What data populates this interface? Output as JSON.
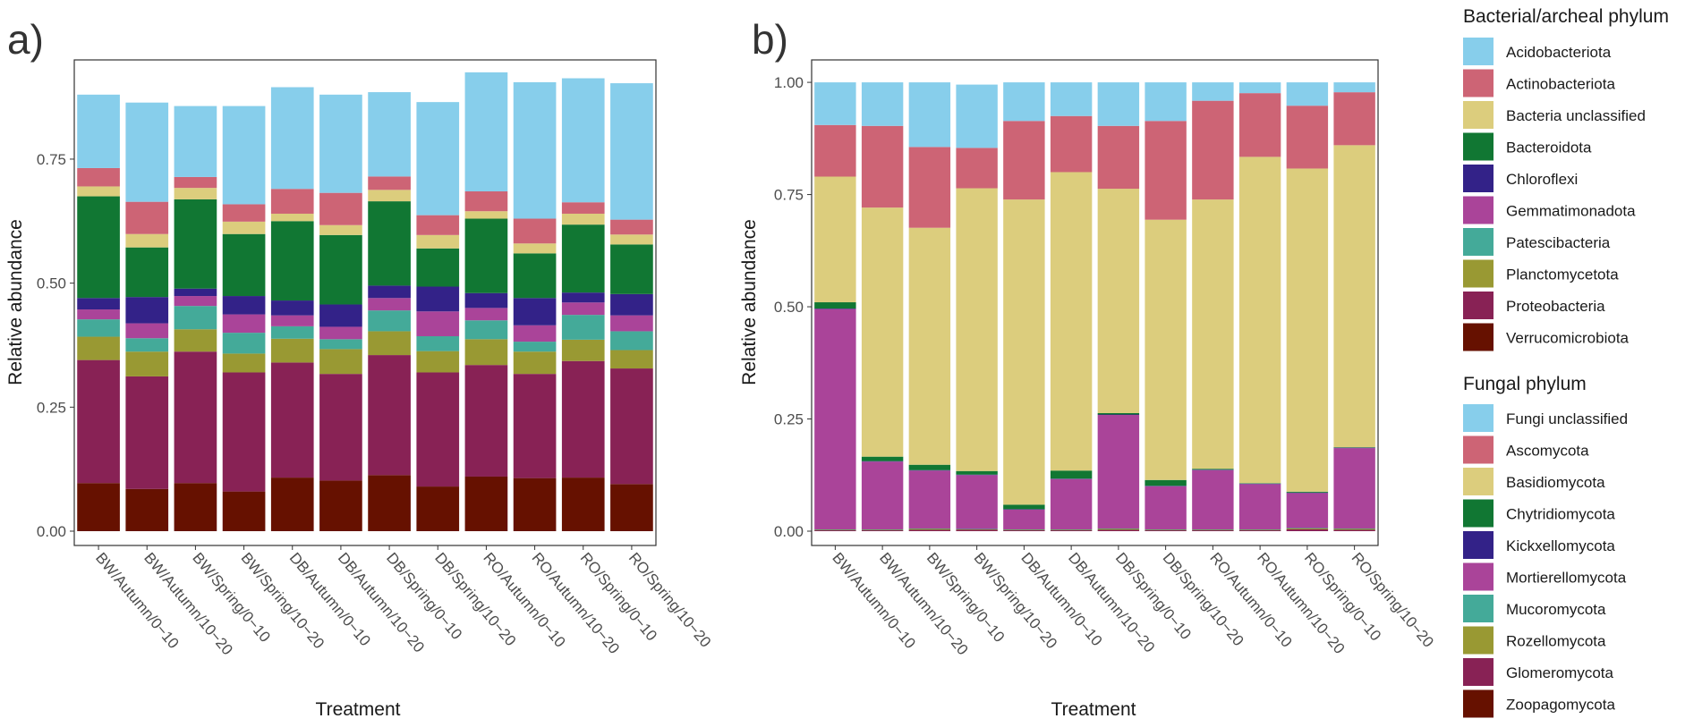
{
  "chart_data": [
    {
      "panel": "a)",
      "type": "bar",
      "stacked": true,
      "xlabel": "Treatment",
      "ylabel": "Relative abundance",
      "ylim": [
        0,
        0.95
      ],
      "yticks": [
        0.0,
        0.25,
        0.5,
        0.75
      ],
      "ytick_labels": [
        "0.00",
        "0.25",
        "0.50",
        "0.75"
      ],
      "categories": [
        "BW/Autumn/0−10",
        "BW/Autumn/10−20",
        "BW/Spring/0−10",
        "BW/Spring/10−20",
        "DB/Autumn/0−10",
        "DB/Autumn/10−20",
        "DB/Spring/0−10",
        "DB/Spring/10−20",
        "RO/Autumn/0−10",
        "RO/Autumn/10−20",
        "RO/Spring/0−10",
        "RO/Spring/10−20"
      ],
      "series": [
        {
          "name": "Verrucomicrobiota",
          "values": [
            0.097,
            0.085,
            0.097,
            0.08,
            0.108,
            0.102,
            0.113,
            0.09,
            0.11,
            0.107,
            0.108,
            0.095
          ]
        },
        {
          "name": "Proteobacteria",
          "values": [
            0.248,
            0.227,
            0.265,
            0.24,
            0.232,
            0.215,
            0.242,
            0.23,
            0.225,
            0.21,
            0.235,
            0.233
          ]
        },
        {
          "name": "Planctomycetota",
          "values": [
            0.047,
            0.05,
            0.045,
            0.038,
            0.048,
            0.05,
            0.048,
            0.043,
            0.052,
            0.045,
            0.043,
            0.037
          ]
        },
        {
          "name": "Patescibacteria",
          "values": [
            0.035,
            0.027,
            0.047,
            0.042,
            0.025,
            0.02,
            0.042,
            0.03,
            0.038,
            0.02,
            0.05,
            0.038
          ]
        },
        {
          "name": "Gemmatimonadota",
          "values": [
            0.02,
            0.03,
            0.02,
            0.037,
            0.022,
            0.025,
            0.025,
            0.05,
            0.025,
            0.033,
            0.025,
            0.032
          ]
        },
        {
          "name": "Chloroflexi",
          "values": [
            0.023,
            0.053,
            0.015,
            0.037,
            0.03,
            0.045,
            0.025,
            0.05,
            0.03,
            0.055,
            0.02,
            0.043
          ]
        },
        {
          "name": "Bacteroidota",
          "values": [
            0.205,
            0.1,
            0.18,
            0.125,
            0.16,
            0.14,
            0.17,
            0.077,
            0.15,
            0.09,
            0.137,
            0.1
          ]
        },
        {
          "name": "Bacteria unclassified",
          "values": [
            0.02,
            0.027,
            0.023,
            0.025,
            0.015,
            0.02,
            0.023,
            0.027,
            0.015,
            0.02,
            0.022,
            0.02
          ]
        },
        {
          "name": "Actinobacteriota",
          "values": [
            0.037,
            0.065,
            0.022,
            0.035,
            0.05,
            0.065,
            0.027,
            0.04,
            0.04,
            0.05,
            0.023,
            0.03
          ]
        },
        {
          "name": "Acidobacteriota",
          "values": [
            0.148,
            0.2,
            0.143,
            0.198,
            0.205,
            0.198,
            0.17,
            0.228,
            0.24,
            0.275,
            0.25,
            0.275
          ]
        }
      ]
    },
    {
      "panel": "b)",
      "type": "bar",
      "stacked": true,
      "xlabel": "Treatment",
      "ylabel": "Relative abundance",
      "ylim": [
        0,
        1.05
      ],
      "yticks": [
        0.0,
        0.25,
        0.5,
        0.75,
        1.0
      ],
      "ytick_labels": [
        "0.00",
        "0.25",
        "0.50",
        "0.75",
        "1.00"
      ],
      "categories": [
        "BW/Autumn/0−10",
        "BW/Autumn/10−20",
        "BW/Spring/0−10",
        "BW/Spring/10−20",
        "DB/Autumn/0−10",
        "DB/Autumn/10−20",
        "DB/Spring/0−10",
        "DB/Spring/10−20",
        "RO/Autumn/0−10",
        "RO/Autumn/10−20",
        "RO/Spring/0−10",
        "RO/Spring/10−20"
      ],
      "series": [
        {
          "name": "Zoopagomycota",
          "values": [
            0,
            0,
            0,
            0,
            0,
            0,
            0,
            0,
            0,
            0,
            0,
            0
          ]
        },
        {
          "name": "Glomeromycota",
          "values": [
            0.002,
            0.002,
            0.003,
            0.003,
            0.002,
            0.002,
            0.003,
            0.002,
            0.002,
            0.002,
            0.004,
            0.003
          ]
        },
        {
          "name": "Rozellomycota",
          "values": [
            0.001,
            0.001,
            0.002,
            0.001,
            0.001,
            0.001,
            0.002,
            0.001,
            0.001,
            0.001,
            0.002,
            0.002
          ]
        },
        {
          "name": "Mucoromycota",
          "values": [
            0.001,
            0.001,
            0.001,
            0.001,
            0.001,
            0.001,
            0.001,
            0.001,
            0.001,
            0.001,
            0.001,
            0.001
          ]
        },
        {
          "name": "Mortierellomycota",
          "values": [
            0.491,
            0.151,
            0.129,
            0.12,
            0.044,
            0.112,
            0.253,
            0.096,
            0.132,
            0.101,
            0.078,
            0.179
          ]
        },
        {
          "name": "Kickxellomycota",
          "values": [
            0.001,
            0.001,
            0.001,
            0.001,
            0.001,
            0.001,
            0.001,
            0.001,
            0.001,
            0.001,
            0.001,
            0.001
          ]
        },
        {
          "name": "Chytridiomycota",
          "values": [
            0.014,
            0.01,
            0.012,
            0.008,
            0.01,
            0.018,
            0.003,
            0.013,
            0.002,
            0.001,
            0.002,
            0.001
          ]
        },
        {
          "name": "Basidiomycota",
          "values": [
            0.28,
            0.555,
            0.528,
            0.63,
            0.68,
            0.665,
            0.5,
            0.58,
            0.6,
            0.727,
            0.72,
            0.673
          ]
        },
        {
          "name": "Ascomycota",
          "values": [
            0.115,
            0.182,
            0.18,
            0.09,
            0.175,
            0.125,
            0.14,
            0.22,
            0.22,
            0.142,
            0.14,
            0.118
          ]
        },
        {
          "name": "Fungi  unclassified",
          "values": [
            0.095,
            0.097,
            0.144,
            0.141,
            0.086,
            0.075,
            0.097,
            0.086,
            0.041,
            0.024,
            0.052,
            0.022
          ]
        }
      ]
    }
  ],
  "legends": [
    {
      "title": "Bacterial/archeal phylum",
      "items": [
        {
          "label": "Acidobacteriota",
          "color": "#87ceeb"
        },
        {
          "label": "Actinobacteriota",
          "color": "#cd6475"
        },
        {
          "label": "Bacteria unclassified",
          "color": "#dccd7d"
        },
        {
          "label": "Bacteroidota",
          "color": "#117733"
        },
        {
          "label": "Chloroflexi",
          "color": "#332288"
        },
        {
          "label": "Gemmatimonadota",
          "color": "#aa4499"
        },
        {
          "label": "Patescibacteria",
          "color": "#44aa99"
        },
        {
          "label": "Planctomycetota",
          "color": "#999933"
        },
        {
          "label": "Proteobacteria",
          "color": "#882255"
        },
        {
          "label": "Verrucomicrobiota",
          "color": "#661100"
        }
      ]
    },
    {
      "title": "Fungal phylum",
      "items": [
        {
          "label": "Fungi  unclassified",
          "color": "#87ceeb"
        },
        {
          "label": "Ascomycota",
          "color": "#cd6475"
        },
        {
          "label": "Basidiomycota",
          "color": "#dccd7d"
        },
        {
          "label": "Chytridiomycota",
          "color": "#117733"
        },
        {
          "label": "Kickxellomycota",
          "color": "#332288"
        },
        {
          "label": "Mortierellomycota",
          "color": "#aa4499"
        },
        {
          "label": "Mucoromycota",
          "color": "#44aa99"
        },
        {
          "label": "Rozellomycota",
          "color": "#999933"
        },
        {
          "label": "Glomeromycota",
          "color": "#882255"
        },
        {
          "label": "Zoopagomycota",
          "color": "#661100"
        }
      ]
    }
  ]
}
